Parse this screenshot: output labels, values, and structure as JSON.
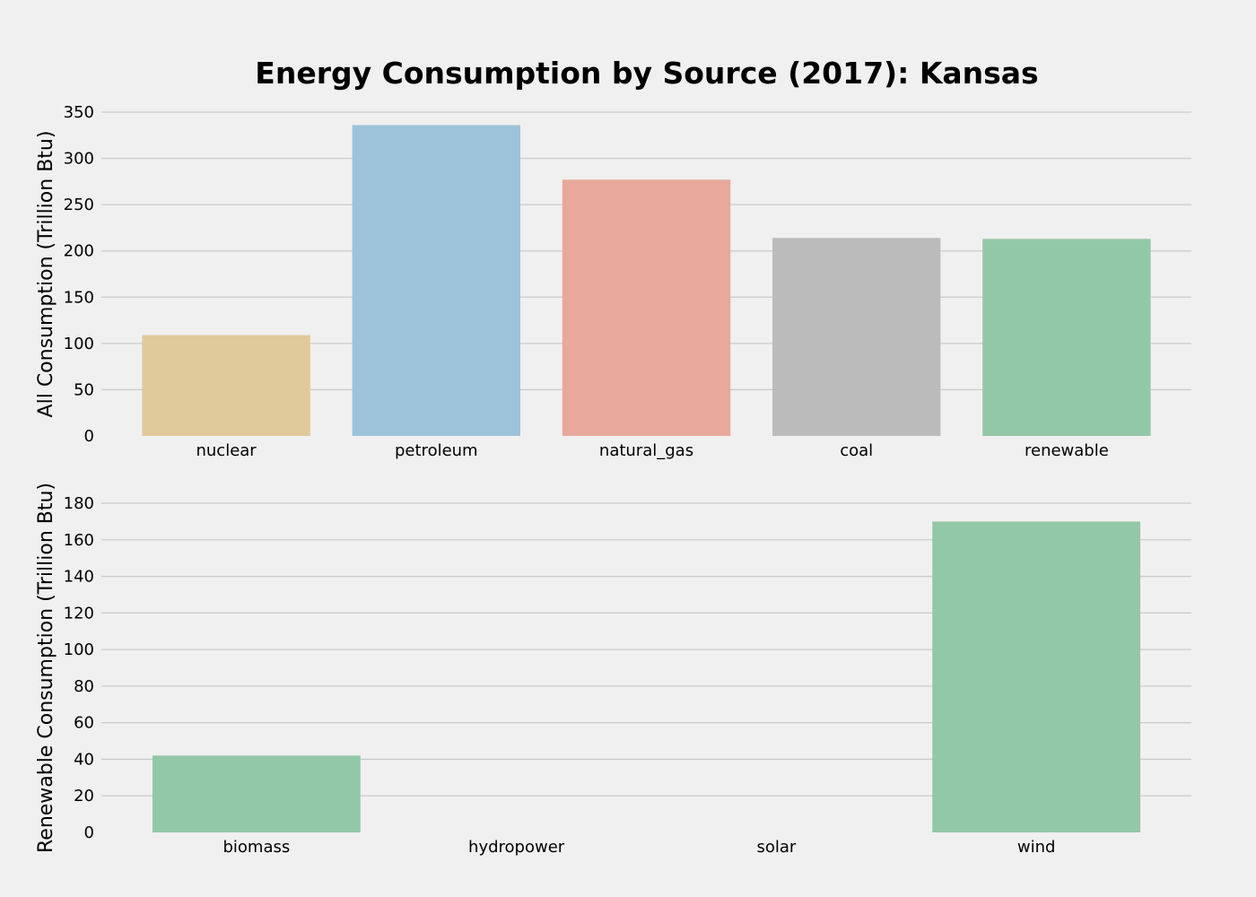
{
  "title": "Energy Consumption by Source (2017): Kansas",
  "chart_data": [
    {
      "type": "bar",
      "title": "Energy Consumption by Source (2017): Kansas",
      "xlabel": "",
      "ylabel": "All Consumption (Trillion Btu)",
      "categories": [
        "nuclear",
        "petroleum",
        "natural_gas",
        "coal",
        "renewable"
      ],
      "values": [
        109,
        336,
        277,
        214,
        213
      ],
      "colors": [
        "#e0c99a",
        "#9dc3da",
        "#e8a89b",
        "#bbbbbb",
        "#93c8a6"
      ],
      "ylim": [
        0,
        350
      ],
      "yticks": [
        0,
        50,
        100,
        150,
        200,
        250,
        300,
        350
      ],
      "grid": true
    },
    {
      "type": "bar",
      "xlabel": "",
      "ylabel": "Renewable Consumption (Trillion Btu)",
      "categories": [
        "biomass",
        "hydropower",
        "solar",
        "wind"
      ],
      "values": [
        42,
        0,
        0,
        170
      ],
      "colors": [
        "#93c8a6",
        "#93c8a6",
        "#93c8a6",
        "#93c8a6"
      ],
      "ylim": [
        0,
        180
      ],
      "yticks": [
        0,
        20,
        40,
        60,
        80,
        100,
        120,
        140,
        160,
        180
      ],
      "grid": true
    }
  ]
}
